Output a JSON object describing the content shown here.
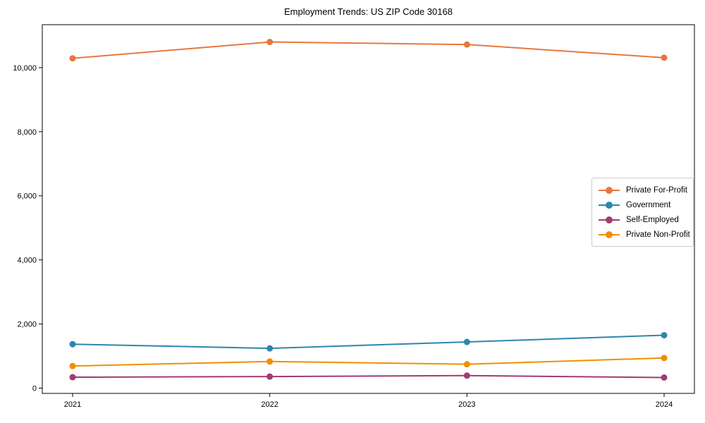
{
  "chart_data": {
    "type": "line",
    "title": "Employment Trends: US ZIP Code 30168",
    "xlabel": "",
    "ylabel": "",
    "categories": [
      "2021",
      "2022",
      "2023",
      "2024"
    ],
    "series": [
      {
        "name": "Private For-Profit",
        "color": "#E8773D",
        "values": [
          10290,
          10800,
          10720,
          10310
        ]
      },
      {
        "name": "Government",
        "color": "#2E86AB",
        "values": [
          1370,
          1240,
          1440,
          1650
        ]
      },
      {
        "name": "Self-Employed",
        "color": "#A23B72",
        "values": [
          340,
          360,
          390,
          330
        ]
      },
      {
        "name": "Private Non-Profit",
        "color": "#F18F01",
        "values": [
          690,
          830,
          745,
          940
        ]
      }
    ],
    "yticks": [
      {
        "value": 0,
        "label": "0"
      },
      {
        "value": 2000,
        "label": "2,000"
      },
      {
        "value": 4000,
        "label": "4,000"
      },
      {
        "value": 6000,
        "label": "6,000"
      },
      {
        "value": 8000,
        "label": "8,000"
      },
      {
        "value": 10000,
        "label": "10,000"
      }
    ],
    "ylim": [
      -165,
      11340
    ],
    "grid": false,
    "marker": "circle",
    "legend_position": "center-right",
    "axis_color": "#000000",
    "tick_label_color": "#000000"
  }
}
